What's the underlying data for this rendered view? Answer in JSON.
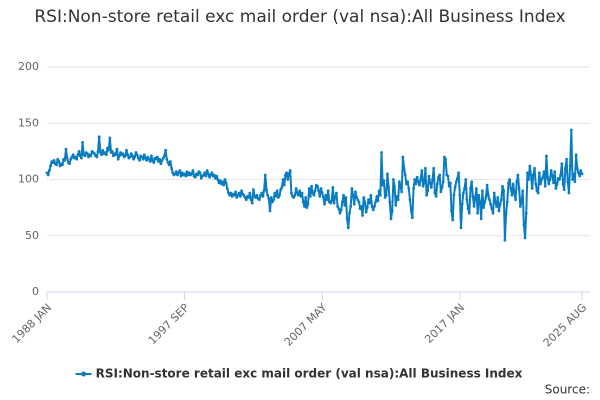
{
  "chart_data": {
    "type": "line",
    "title": "RSI:Non-store retail exc mail order (val nsa):All Business Index",
    "source": "Source:",
    "categories": [
      "1988 JAN",
      null,
      null,
      null,
      null,
      null,
      null,
      null,
      null,
      null,
      null,
      null,
      null,
      null,
      null,
      null,
      null,
      null,
      null,
      null,
      null,
      null,
      null,
      null,
      null,
      null,
      null,
      null,
      null,
      null,
      null,
      null,
      null,
      null,
      null,
      null,
      null,
      null,
      null,
      null,
      null,
      null,
      null,
      null,
      null,
      null,
      null,
      null,
      null,
      null,
      null,
      null,
      null,
      null,
      null,
      null,
      null,
      null,
      null,
      null,
      null,
      null,
      null,
      null,
      null,
      null,
      null,
      null,
      null,
      null,
      null,
      null,
      null,
      null,
      null,
      null,
      null,
      null,
      null,
      null,
      null,
      null,
      null,
      null,
      null,
      null,
      null,
      null,
      null,
      null,
      null,
      null,
      null,
      null,
      null,
      null,
      null,
      null,
      null,
      null,
      null,
      null,
      null,
      null,
      null,
      null,
      null,
      null,
      null,
      null,
      null,
      null,
      null,
      null,
      null,
      null,
      "1997 SEP",
      null,
      null,
      null,
      null,
      null,
      null,
      null,
      null,
      null,
      null,
      null,
      null,
      null,
      null,
      null,
      null,
      null,
      null,
      null,
      null,
      null,
      null,
      null,
      null,
      null,
      null,
      null,
      null,
      null,
      null,
      null,
      null,
      null,
      null,
      null,
      null,
      null,
      null,
      null,
      null,
      null,
      null,
      null,
      null,
      null,
      null,
      null,
      null,
      null,
      null,
      null,
      null,
      null,
      null,
      null,
      null,
      null,
      null,
      null,
      null,
      null,
      null,
      null,
      null,
      null,
      null,
      null,
      null,
      null,
      null,
      null,
      null,
      null,
      null,
      null,
      null,
      null,
      null,
      null,
      null,
      null,
      null,
      null,
      null,
      null,
      null,
      null,
      null,
      null,
      null,
      null,
      null,
      null,
      null,
      null,
      null,
      null,
      null,
      null,
      null,
      null,
      null,
      null,
      null,
      null,
      null,
      null,
      null,
      null,
      null,
      null,
      null,
      null,
      null,
      null,
      "2007 MAY",
      null,
      null,
      null,
      null,
      null,
      null,
      null,
      null,
      null,
      null,
      null,
      null,
      null,
      null,
      null,
      null,
      null,
      null,
      null,
      null,
      null,
      null,
      null,
      null,
      null,
      null,
      null,
      null,
      null,
      null,
      null,
      null,
      null,
      null,
      null,
      null,
      null,
      null,
      null,
      null,
      null,
      null,
      null,
      null,
      null,
      null,
      null,
      null,
      null,
      null,
      null,
      null,
      null,
      null,
      null,
      null,
      null,
      null,
      null,
      null,
      null,
      null,
      null,
      null,
      null,
      null,
      null,
      null,
      null,
      null,
      null,
      null,
      null,
      null,
      null,
      null,
      null,
      null,
      null,
      null,
      null,
      null,
      null,
      null,
      null,
      null,
      null,
      null,
      null,
      null,
      null,
      null,
      null,
      null,
      null,
      null,
      null,
      null,
      null,
      null,
      null,
      null,
      null,
      null,
      null,
      null,
      null,
      null,
      null,
      null,
      null,
      null,
      null,
      null,
      null,
      "2017 JAN",
      null,
      null,
      null,
      null,
      null,
      null,
      null,
      null,
      null,
      null,
      null,
      null,
      null,
      null,
      null,
      null,
      null,
      null,
      null,
      null,
      null,
      null,
      null,
      null,
      null,
      null,
      null,
      null,
      null,
      null,
      null,
      null,
      null,
      null,
      null,
      null,
      null,
      null,
      null,
      null,
      null,
      null,
      null,
      null,
      null,
      null,
      null,
      null,
      null,
      null,
      null,
      null,
      null,
      null,
      null,
      null,
      null,
      null,
      null,
      null,
      null,
      null,
      null,
      null,
      null,
      null,
      null,
      null,
      null,
      null,
      null,
      null,
      null,
      null,
      null,
      null,
      null,
      null,
      null,
      null,
      null,
      null,
      null,
      null,
      null,
      null,
      null,
      null,
      null,
      null,
      null,
      null,
      null,
      null,
      null,
      null,
      null,
      null,
      null,
      null,
      null,
      null,
      "2025 AUG"
    ],
    "series": [
      {
        "name": "RSI:Non-store retail exc mail order (val nsa):All Business Index",
        "color": "#0a7cc1",
        "values": [
          106,
          104,
          108,
          112,
          116,
          115,
          117,
          114,
          113,
          118,
          116,
          112,
          114,
          113,
          118,
          117,
          127,
          119,
          115,
          114,
          118,
          120,
          122,
          119,
          120,
          118,
          122,
          125,
          121,
          119,
          133,
          122,
          121,
          124,
          123,
          120,
          122,
          121,
          125,
          124,
          123,
          121,
          120,
          125,
          138,
          124,
          122,
          126,
          123,
          124,
          122,
          128,
          126,
          137,
          124,
          125,
          121,
          123,
          122,
          127,
          118,
          121,
          124,
          122,
          123,
          120,
          121,
          126,
          122,
          119,
          120,
          123,
          121,
          118,
          120,
          124,
          122,
          119,
          117,
          121,
          120,
          118,
          122,
          119,
          117,
          120,
          118,
          116,
          121,
          117,
          115,
          119,
          118,
          120,
          116,
          118,
          114,
          117,
          119,
          121,
          126,
          118,
          115,
          113,
          116,
          110,
          106,
          104,
          105,
          107,
          104,
          106,
          108,
          103,
          106,
          104,
          105,
          103,
          107,
          104,
          106,
          104,
          105,
          108,
          103,
          102,
          105,
          104,
          107,
          106,
          101,
          103,
          104,
          106,
          103,
          108,
          105,
          102,
          104,
          106,
          103,
          104,
          101,
          103,
          100,
          97,
          99,
          96,
          98,
          95,
          100,
          97,
          92,
          88,
          86,
          88,
          85,
          87,
          86,
          89,
          84,
          86,
          88,
          85,
          90,
          87,
          86,
          84,
          82,
          85,
          84,
          88,
          82,
          79,
          91,
          85,
          84,
          86,
          83,
          82,
          86,
          88,
          85,
          90,
          104,
          91,
          86,
          83,
          72,
          84,
          80,
          82,
          88,
          85,
          90,
          84,
          86,
          91,
          93,
          100,
          95,
          104,
          106,
          100,
          105,
          108,
          88,
          85,
          84,
          86,
          92,
          88,
          86,
          90,
          85,
          88,
          80,
          76,
          84,
          75,
          78,
          92,
          85,
          94,
          88,
          86,
          90,
          95,
          94,
          90,
          85,
          92,
          88,
          84,
          78,
          86,
          82,
          90,
          80,
          79,
          81,
          93,
          79,
          85,
          88,
          76,
          74,
          70,
          73,
          80,
          86,
          77,
          84,
          65,
          57,
          70,
          76,
          92,
          86,
          78,
          89,
          84,
          82,
          80,
          74,
          76,
          68,
          84,
          80,
          71,
          75,
          82,
          79,
          86,
          76,
          73,
          76,
          80,
          85,
          81,
          90,
          86,
          124,
          95,
          99,
          84,
          86,
          105,
          93,
          80,
          65,
          72,
          100,
          94,
          77,
          85,
          82,
          98,
          94,
          89,
          120,
          110,
          104,
          96,
          98,
          92,
          82,
          72,
          66,
          92,
          100,
          96,
          102,
          98,
          95,
          100,
          108,
          94,
          97,
          110,
          86,
          90,
          103,
          97,
          93,
          100,
          110,
          88,
          85,
          96,
          102,
          104,
          89,
          93,
          98,
          120,
          118,
          104,
          103,
          94,
          97,
          72,
          64,
          86,
          93,
          98,
          101,
          106,
          86,
          57,
          78,
          88,
          92,
          100,
          82,
          74,
          70,
          92,
          98,
          85,
          76,
          84,
          92,
          70,
          86,
          80,
          65,
          90,
          75,
          80,
          84,
          95,
          86,
          82,
          78,
          74,
          70,
          88,
          80,
          76,
          84,
          72,
          78,
          82,
          94,
          90,
          46,
          70,
          80,
          97,
          100,
          92,
          86,
          96,
          88,
          82,
          98,
          104,
          92,
          76,
          80,
          90,
          60,
          48,
          70,
          106,
          100,
          112,
          104,
          92,
          104,
          110,
          96,
          90,
          88,
          106,
          96,
          100,
          102,
          107,
          94,
          121,
          102,
          96,
          100,
          108,
          103,
          97,
          107,
          92,
          96,
          101,
          100,
          104,
          114,
          96,
          91,
          110,
          118,
          98,
          88,
          112,
          144,
          100,
          105,
          98,
          122,
          110,
          106,
          103,
          108,
          105
        ]
      }
    ],
    "ylim": [
      0,
      200
    ],
    "yticks": [
      0,
      50,
      100,
      150,
      200
    ],
    "grid": true
  }
}
